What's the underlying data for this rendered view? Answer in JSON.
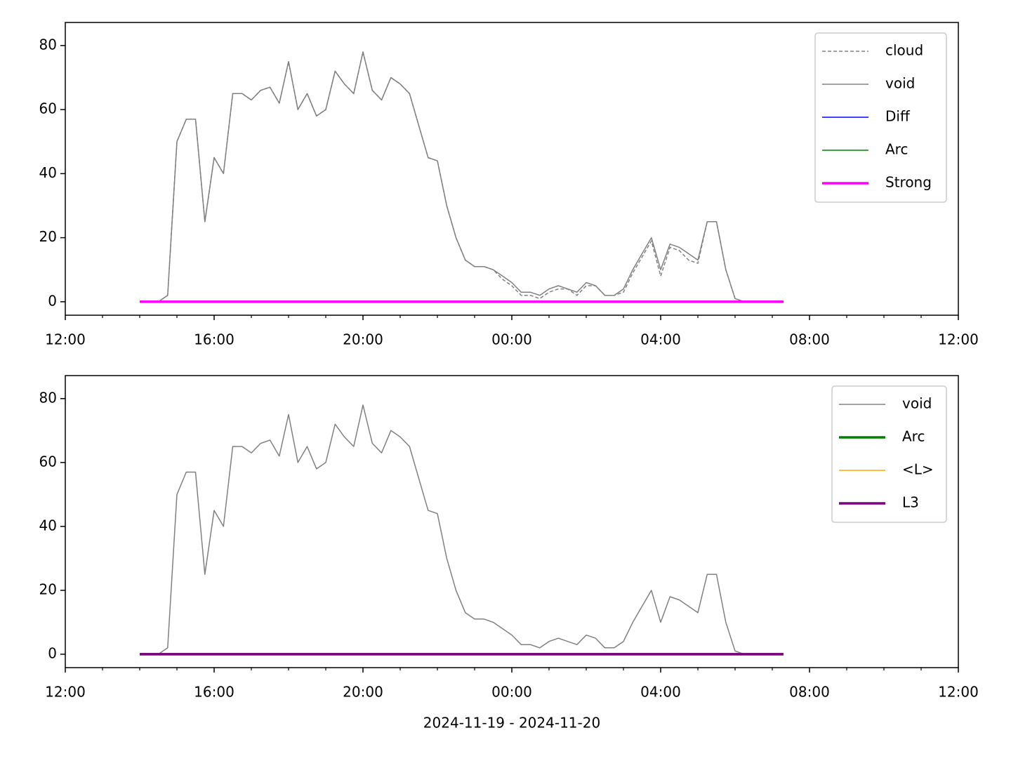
{
  "chart_data": [
    {
      "type": "line",
      "legend": "upper right",
      "xlim": [
        12,
        36
      ],
      "ylim": [
        -4.2,
        87.2
      ],
      "yticks": [
        0,
        20,
        40,
        60,
        80
      ],
      "xticks": [
        {
          "value": 12,
          "label": "12:00"
        },
        {
          "value": 16,
          "label": "16:00"
        },
        {
          "value": 20,
          "label": "20:00"
        },
        {
          "value": 24,
          "label": "00:00"
        },
        {
          "value": 28,
          "label": "04:00"
        },
        {
          "value": 32,
          "label": "08:00"
        },
        {
          "value": 36,
          "label": "12:00"
        }
      ],
      "xminorticks": [
        13,
        14,
        15,
        17,
        18,
        19,
        21,
        22,
        23,
        25,
        26,
        27,
        29,
        30,
        31,
        33,
        34,
        35
      ],
      "x": [
        14.0,
        14.25,
        14.5,
        14.75,
        15.0,
        15.25,
        15.5,
        15.75,
        16.0,
        16.25,
        16.5,
        16.75,
        17.0,
        17.25,
        17.5,
        17.75,
        18.0,
        18.25,
        18.5,
        18.75,
        19.0,
        19.25,
        19.5,
        19.75,
        20.0,
        20.25,
        20.5,
        20.75,
        21.0,
        21.25,
        21.5,
        21.75,
        22.0,
        22.25,
        22.5,
        22.75,
        23.0,
        23.25,
        23.5,
        23.75,
        24.0,
        24.25,
        24.5,
        24.75,
        25.0,
        25.25,
        25.5,
        25.75,
        26.0,
        26.25,
        26.5,
        26.75,
        27.0,
        27.25,
        27.5,
        27.75,
        28.0,
        28.25,
        28.5,
        28.75,
        29.0,
        29.25,
        29.5,
        29.75,
        30.0,
        30.25,
        30.5,
        30.75,
        31.0,
        31.3
      ],
      "series": [
        {
          "name": "cloud",
          "color": "#808080",
          "linestyle": "dashed",
          "linewidth": 1.5,
          "values": [
            0,
            0,
            0,
            2,
            50,
            57,
            57,
            25,
            45,
            40,
            65,
            65,
            63,
            66,
            67,
            62,
            75,
            60,
            65,
            58,
            60,
            72,
            68,
            65,
            78,
            66,
            63,
            70,
            68,
            65,
            55,
            45,
            44,
            30,
            20,
            13,
            11,
            11,
            10,
            7,
            5,
            2,
            2,
            1,
            3,
            4,
            4,
            2,
            5,
            5,
            2,
            2,
            3,
            9,
            14,
            19,
            8,
            17,
            16,
            13,
            12,
            25,
            25,
            10,
            1,
            0,
            0,
            0,
            0,
            0
          ]
        },
        {
          "name": "void",
          "color": "#808080",
          "linestyle": "solid",
          "linewidth": 1.5,
          "values": [
            0,
            0,
            0,
            2,
            50,
            57,
            57,
            25,
            45,
            40,
            65,
            65,
            63,
            66,
            67,
            62,
            75,
            60,
            65,
            58,
            60,
            72,
            68,
            65,
            78,
            66,
            63,
            70,
            68,
            65,
            55,
            45,
            44,
            30,
            20,
            13,
            11,
            11,
            10,
            8,
            6,
            3,
            3,
            2,
            4,
            5,
            4,
            3,
            6,
            5,
            2,
            2,
            4,
            10,
            15,
            20,
            10,
            18,
            17,
            15,
            13,
            25,
            25,
            10,
            1,
            0,
            0,
            0,
            0,
            0
          ]
        },
        {
          "name": "Diff",
          "color": "#0000ff",
          "linestyle": "solid",
          "linewidth": 1.5,
          "x": [
            14.0,
            31.3
          ],
          "values": [
            0,
            0
          ]
        },
        {
          "name": "Arc",
          "color": "#008000",
          "linestyle": "solid",
          "linewidth": 1.5,
          "x": [
            14.0,
            31.3
          ],
          "values": [
            0,
            0
          ]
        },
        {
          "name": "Strong",
          "color": "#ff00ff",
          "linestyle": "solid",
          "linewidth": 3.5,
          "x": [
            14.0,
            31.3
          ],
          "values": [
            0,
            0
          ]
        }
      ]
    },
    {
      "type": "line",
      "legend": "upper right",
      "xlim": [
        12,
        36
      ],
      "ylim": [
        -4.2,
        87.2
      ],
      "xlabel": "2024-11-19 - 2024-11-20",
      "yticks": [
        0,
        20,
        40,
        60,
        80
      ],
      "xticks": [
        {
          "value": 12,
          "label": "12:00"
        },
        {
          "value": 16,
          "label": "16:00"
        },
        {
          "value": 20,
          "label": "20:00"
        },
        {
          "value": 24,
          "label": "00:00"
        },
        {
          "value": 28,
          "label": "04:00"
        },
        {
          "value": 32,
          "label": "08:00"
        },
        {
          "value": 36,
          "label": "12:00"
        }
      ],
      "xminorticks": [
        13,
        14,
        15,
        17,
        18,
        19,
        21,
        22,
        23,
        25,
        26,
        27,
        29,
        30,
        31,
        33,
        34,
        35
      ],
      "x": [
        14.0,
        14.25,
        14.5,
        14.75,
        15.0,
        15.25,
        15.5,
        15.75,
        16.0,
        16.25,
        16.5,
        16.75,
        17.0,
        17.25,
        17.5,
        17.75,
        18.0,
        18.25,
        18.5,
        18.75,
        19.0,
        19.25,
        19.5,
        19.75,
        20.0,
        20.25,
        20.5,
        20.75,
        21.0,
        21.25,
        21.5,
        21.75,
        22.0,
        22.25,
        22.5,
        22.75,
        23.0,
        23.25,
        23.5,
        23.75,
        24.0,
        24.25,
        24.5,
        24.75,
        25.0,
        25.25,
        25.5,
        25.75,
        26.0,
        26.25,
        26.5,
        26.75,
        27.0,
        27.25,
        27.5,
        27.75,
        28.0,
        28.25,
        28.5,
        28.75,
        29.0,
        29.25,
        29.5,
        29.75,
        30.0,
        30.25,
        30.5,
        30.75,
        31.0,
        31.3
      ],
      "series": [
        {
          "name": "void",
          "color": "#808080",
          "linestyle": "solid",
          "linewidth": 1.5,
          "values": [
            0,
            0,
            0,
            2,
            50,
            57,
            57,
            25,
            45,
            40,
            65,
            65,
            63,
            66,
            67,
            62,
            75,
            60,
            65,
            58,
            60,
            72,
            68,
            65,
            78,
            66,
            63,
            70,
            68,
            65,
            55,
            45,
            44,
            30,
            20,
            13,
            11,
            11,
            10,
            8,
            6,
            3,
            3,
            2,
            4,
            5,
            4,
            3,
            6,
            5,
            2,
            2,
            4,
            10,
            15,
            20,
            10,
            18,
            17,
            15,
            13,
            25,
            25,
            10,
            1,
            0,
            0,
            0,
            0,
            0
          ]
        },
        {
          "name": "Arc",
          "color": "#008000",
          "linestyle": "solid",
          "linewidth": 3.5,
          "x": [
            14.0,
            31.3
          ],
          "values": [
            0,
            0
          ]
        },
        {
          "name": "<L>",
          "color": "#ffa500",
          "linestyle": "solid",
          "linewidth": 1.5,
          "x": [
            14.0,
            31.3
          ],
          "values": [
            0,
            0
          ]
        },
        {
          "name": "L3",
          "color": "#800080",
          "linestyle": "solid",
          "linewidth": 3.5,
          "x": [
            14.0,
            31.3
          ],
          "values": [
            0,
            0
          ]
        }
      ]
    }
  ]
}
